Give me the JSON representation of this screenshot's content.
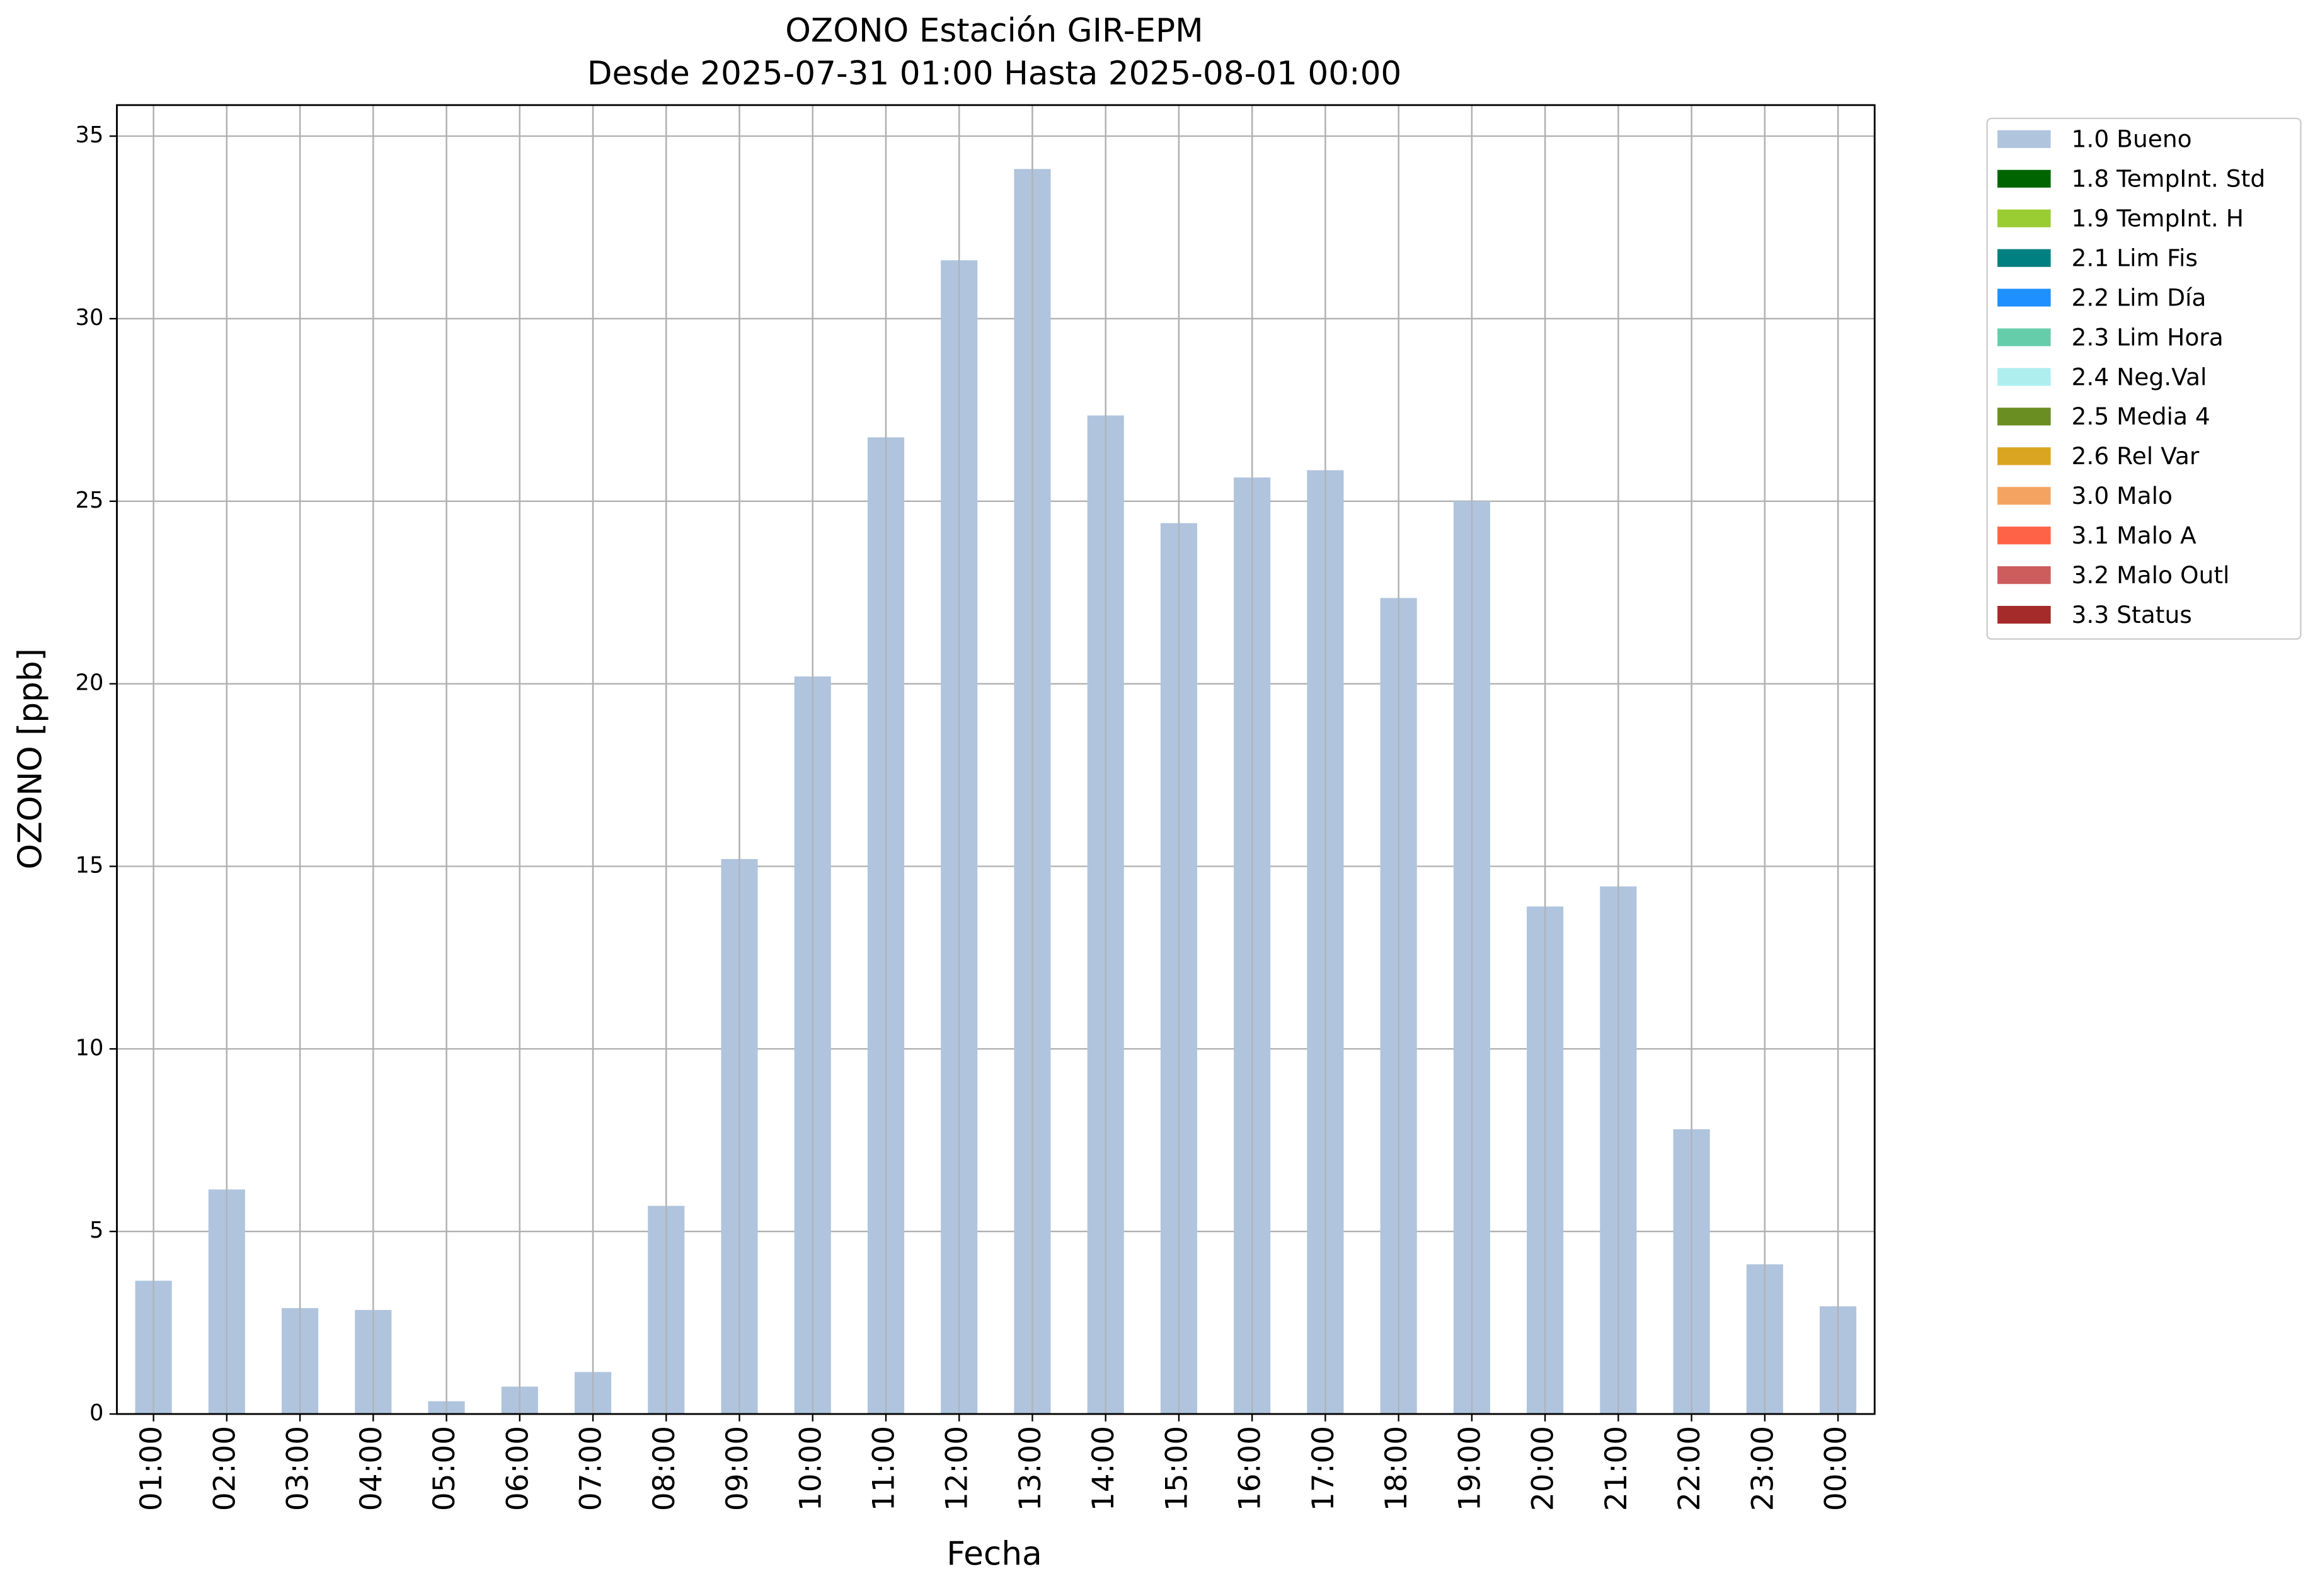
{
  "chart_data": {
    "type": "bar",
    "title": "OZONO Estación GIR-EPM",
    "subtitle": "Desde 2025-07-31 01:00 Hasta 2025-08-01 00:00",
    "x_label": "Fecha",
    "y_label": "OZONO [ppb]",
    "categories": [
      "01:00",
      "02:00",
      "03:00",
      "04:00",
      "05:00",
      "06:00",
      "07:00",
      "08:00",
      "09:00",
      "10:00",
      "11:00",
      "12:00",
      "13:00",
      "14:00",
      "15:00",
      "16:00",
      "17:00",
      "18:00",
      "19:00",
      "20:00",
      "21:00",
      "22:00",
      "23:00",
      "00:00"
    ],
    "series": [
      {
        "name": "1.0 Bueno",
        "color": "#b0c4de",
        "values": [
          3.65,
          6.15,
          2.9,
          2.85,
          0.35,
          0.75,
          1.15,
          5.7,
          15.2,
          20.2,
          26.75,
          31.6,
          34.1,
          27.35,
          24.4,
          25.65,
          25.85,
          22.35,
          25.0,
          13.9,
          14.45,
          7.8,
          4.1,
          2.95
        ]
      },
      {
        "name": "1.8 TempInt. Std",
        "color": "#006400"
      },
      {
        "name": "1.9 TempInt. H",
        "color": "#9acd32"
      },
      {
        "name": "2.1 Lim Fis",
        "color": "#008080"
      },
      {
        "name": "2.2 Lim Día",
        "color": "#1e90ff"
      },
      {
        "name": "2.3 Lim Hora",
        "color": "#66cdaa"
      },
      {
        "name": "2.4 Neg.Val",
        "color": "#afeeee"
      },
      {
        "name": "2.5 Media 4",
        "color": "#6b8e23"
      },
      {
        "name": "2.6 Rel Var",
        "color": "#daa520"
      },
      {
        "name": "3.0 Malo",
        "color": "#f4a460"
      },
      {
        "name": "3.1 Malo A",
        "color": "#ff6347"
      },
      {
        "name": "3.2 Malo Outl",
        "color": "#cd5c5c"
      },
      {
        "name": "3.3 Status",
        "color": "#a52a2a"
      }
    ],
    "ylim": [
      0,
      35.85
    ],
    "yticks": [
      0,
      5,
      10,
      15,
      20,
      25,
      30,
      35
    ],
    "grid": true,
    "legend": "outside-right"
  }
}
